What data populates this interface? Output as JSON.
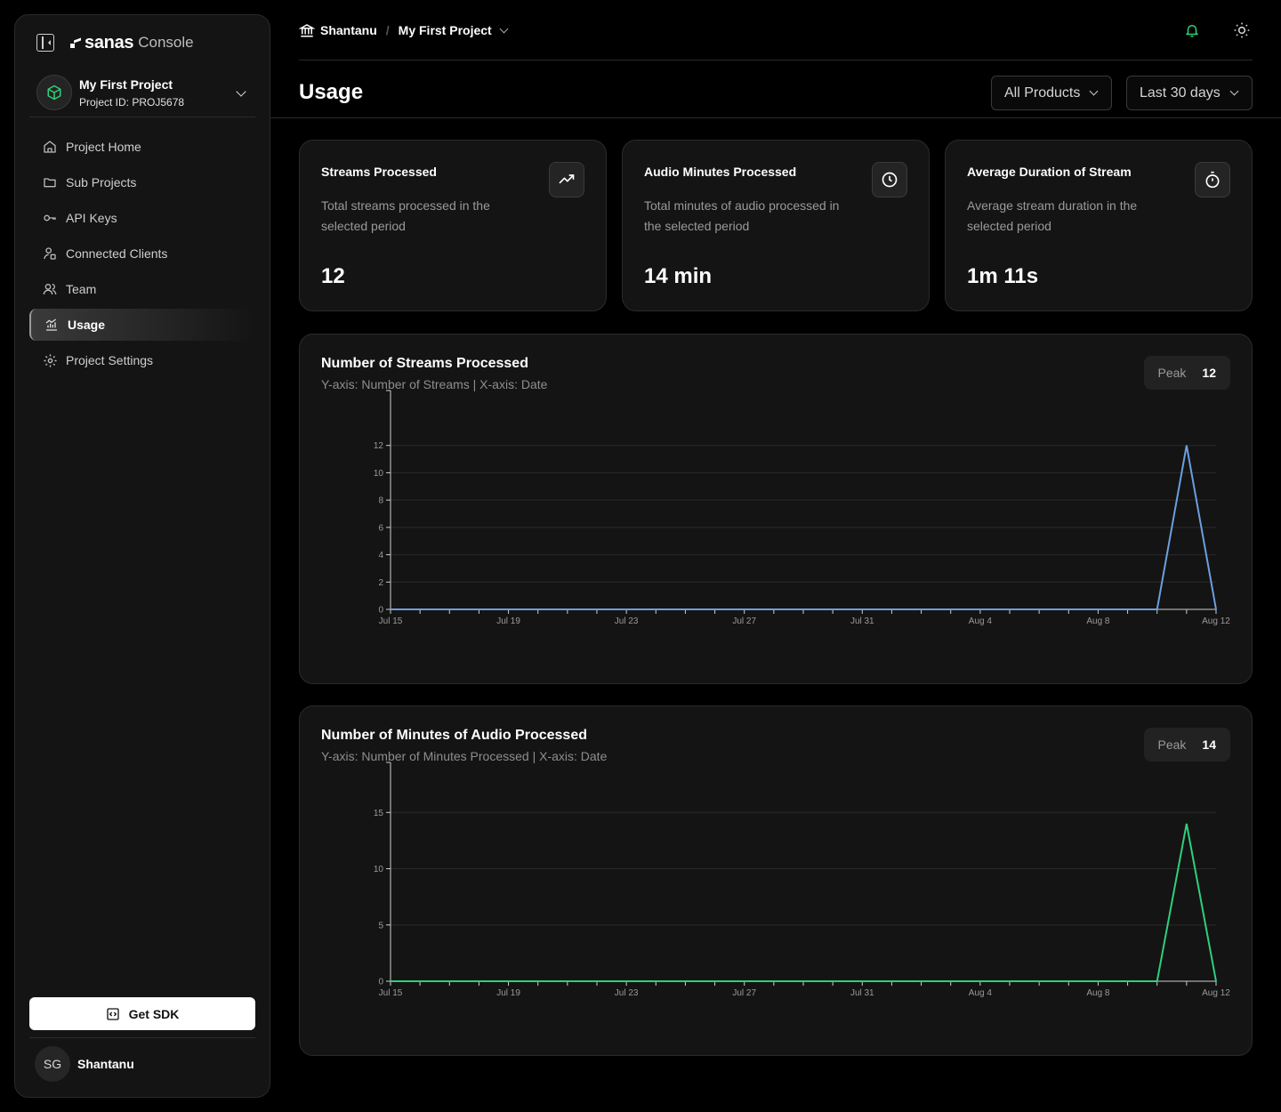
{
  "app": {
    "logo": "sanas",
    "suffix": "Console"
  },
  "project": {
    "name": "My First Project",
    "id_text": "Project ID: PROJ5678"
  },
  "nav": [
    {
      "label": "Project Home",
      "icon": "home-icon"
    },
    {
      "label": "Sub Projects",
      "icon": "folder-icon"
    },
    {
      "label": "API Keys",
      "icon": "key-icon"
    },
    {
      "label": "Connected Clients",
      "icon": "clients-icon"
    },
    {
      "label": "Team",
      "icon": "team-icon"
    },
    {
      "label": "Usage",
      "icon": "usage-icon",
      "active": true
    },
    {
      "label": "Project Settings",
      "icon": "settings-icon"
    }
  ],
  "sdk_button": "Get SDK",
  "user": {
    "initials": "SG",
    "name": "Shantanu"
  },
  "breadcrumb": {
    "org": "Shantanu",
    "separator": "/",
    "project": "My First Project"
  },
  "page": {
    "title": "Usage"
  },
  "filters": {
    "product": "All Products",
    "period": "Last 30 days"
  },
  "stats": [
    {
      "title": "Streams Processed",
      "description": "Total streams processed in the selected period",
      "value": "12",
      "icon": "trend-icon"
    },
    {
      "title": "Audio Minutes Processed",
      "description": "Total minutes of audio processed in the selected period",
      "value": "14 min",
      "icon": "clock-icon"
    },
    {
      "title": "Average Duration of Stream",
      "description": "Average stream duration in the selected period",
      "value": "1m 11s",
      "icon": "stopwatch-icon"
    }
  ],
  "colors": {
    "streams_line": "#6c9fe0",
    "minutes_line": "#2fd07a",
    "notification": "#2fd07a"
  },
  "charts": [
    {
      "title": "Number of Streams Processed",
      "subtitle": "Y-axis: Number of Streams | X-axis: Date",
      "peak_label": "Peak",
      "peak_value": "12"
    },
    {
      "title": "Number of Minutes of Audio Processed",
      "subtitle": "Y-axis: Number of Minutes Processed | X-axis: Date",
      "peak_label": "Peak",
      "peak_value": "14"
    }
  ],
  "chart_data": [
    {
      "type": "line",
      "title": "Number of Streams Processed",
      "x": [
        "Jul 15",
        "Jul 16",
        "Jul 17",
        "Jul 18",
        "Jul 19",
        "Jul 20",
        "Jul 21",
        "Jul 22",
        "Jul 23",
        "Jul 24",
        "Jul 25",
        "Jul 26",
        "Jul 27",
        "Jul 28",
        "Jul 29",
        "Jul 30",
        "Jul 31",
        "Aug 1",
        "Aug 2",
        "Aug 3",
        "Aug 4",
        "Aug 5",
        "Aug 6",
        "Aug 7",
        "Aug 8",
        "Aug 9",
        "Aug 10",
        "Aug 11",
        "Aug 12"
      ],
      "x_tick_labels": [
        "Jul 15",
        "Jul 19",
        "Jul 23",
        "Jul 27",
        "Jul 31",
        "Aug 4",
        "Aug 8",
        "Aug 12"
      ],
      "series": [
        {
          "values": [
            0,
            0,
            0,
            0,
            0,
            0,
            0,
            0,
            0,
            0,
            0,
            0,
            0,
            0,
            0,
            0,
            0,
            0,
            0,
            0,
            0,
            0,
            0,
            0,
            0,
            0,
            0,
            12,
            0
          ]
        }
      ],
      "y_ticks": [
        0,
        2,
        4,
        6,
        8,
        10,
        12
      ],
      "ylim": [
        0,
        14
      ],
      "grid": true
    },
    {
      "type": "line",
      "title": "Number of Minutes of Audio Processed",
      "x": [
        "Jul 15",
        "Jul 16",
        "Jul 17",
        "Jul 18",
        "Jul 19",
        "Jul 20",
        "Jul 21",
        "Jul 22",
        "Jul 23",
        "Jul 24",
        "Jul 25",
        "Jul 26",
        "Jul 27",
        "Jul 28",
        "Jul 29",
        "Jul 30",
        "Jul 31",
        "Aug 1",
        "Aug 2",
        "Aug 3",
        "Aug 4",
        "Aug 5",
        "Aug 6",
        "Aug 7",
        "Aug 8",
        "Aug 9",
        "Aug 10",
        "Aug 11",
        "Aug 12"
      ],
      "x_tick_labels": [
        "Jul 15",
        "Jul 19",
        "Jul 23",
        "Jul 27",
        "Jul 31",
        "Aug 4",
        "Aug 8",
        "Aug 12"
      ],
      "series": [
        {
          "values": [
            0,
            0,
            0,
            0,
            0,
            0,
            0,
            0,
            0,
            0,
            0,
            0,
            0,
            0,
            0,
            0,
            0,
            0,
            0,
            0,
            0,
            0,
            0,
            0,
            0,
            0,
            0,
            14,
            0
          ]
        }
      ],
      "y_ticks": [
        0,
        5,
        10,
        15
      ],
      "ylim": [
        0,
        17
      ],
      "grid": true
    }
  ]
}
